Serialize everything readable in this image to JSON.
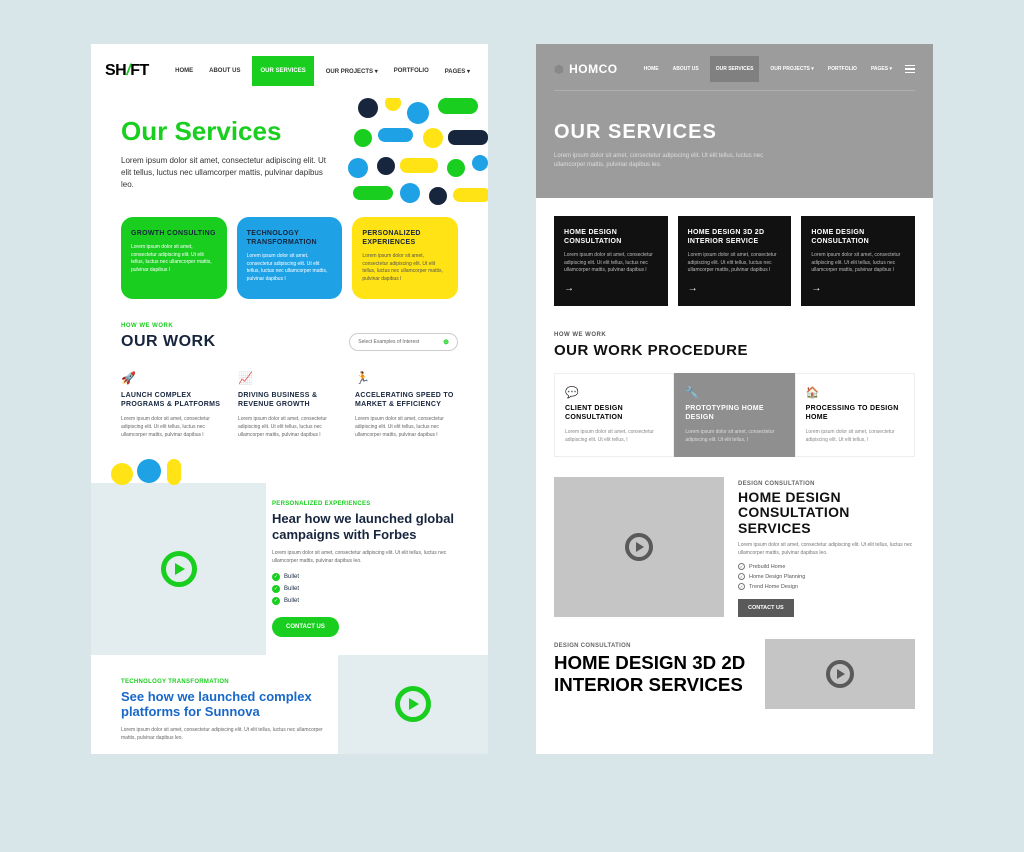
{
  "shift": {
    "logo": {
      "part1": "SH",
      "slash": "/",
      "part2": "FT"
    },
    "nav": [
      "HOME",
      "ABOUT US",
      "OUR SERVICES",
      "OUR PROJECTS ▾",
      "PORTFOLIO",
      "PAGES ▾"
    ],
    "nav_active_index": 2,
    "hero": {
      "title": "Our Services",
      "text": "Lorem ipsum dolor sit amet, consectetur adipiscing elit. Ut elit tellus, luctus nec ullamcorper mattis, pulvinar dapibus leo."
    },
    "cards": [
      {
        "title": "GROWTH CONSULTING",
        "text": "Lorem ipsum dolor sit amet, consectetur adipiscing elit. Ut elit tellus, luctus nec ullamcorper mattis, pulvinar dapibus l",
        "bg": "#19ce1f",
        "title_color": "#17253d",
        "text_color": "#fff"
      },
      {
        "title": "TECHNOLOGY TRANSFORMATION",
        "text": "Lorem ipsum dolor sit amet, consectetur adipiscing elit. Ut elit tellus, luctus nec ullamcorper mattis, pulvinar dapibus l",
        "bg": "#1fa1e6",
        "title_color": "#17253d",
        "text_color": "#fff"
      },
      {
        "title": "PERSONALIZED EXPERIENCES",
        "text": "Lorem ipsum dolor sit amet, consectetur adipiscing elit. Ut elit tellus, luctus nec ullamcorper mattis, pulvinar dapibus l",
        "bg": "#ffe314",
        "title_color": "#17253d",
        "text_color": "#555"
      }
    ],
    "work_eyebrow": "HOW WE WORK",
    "work_title": "OUR WORK",
    "select_label": "Select Examples of Interest",
    "work_cols": [
      {
        "icon": "🚀",
        "title": "LAUNCH COMPLEX PROGRAMS & PLATFORMS",
        "text": "Lorem ipsum dolor sit amet, consectetur adipiscing elit. Ut elit tellus, luctus nec ullamcorper mattis, pulvinar dapibus l"
      },
      {
        "icon": "📈",
        "title": "DRIVING BUSINESS & REVENUE GROWTH",
        "text": "Lorem ipsum dolor sit amet, consectetur adipiscing elit. Ut elit tellus, luctus nec ullamcorper mattis, pulvinar dapibus l"
      },
      {
        "icon": "🏃",
        "title": "ACCELERATING SPEED TO MARKET & EFFICIENCY",
        "text": "Lorem ipsum dolor sit amet, consectetur adipiscing elit. Ut elit tellus, luctus nec ullamcorper mattis, pulvinar dapibus l"
      }
    ],
    "feature1": {
      "eyebrow": "PERSONALIZED EXPERIENCES",
      "title": "Hear how we launched global campaigns with Forbes",
      "text": "Lorem ipsum dolor sit amet, consectetur adipiscing elit. Ut elit tellus, luctus nec ullamcorper mattis, pulvinar dapibus leo.",
      "bullets": [
        "Bullet",
        "Bullet",
        "Bullet"
      ],
      "cta": "CONTACT US"
    },
    "feature2": {
      "eyebrow": "TECHNOLOGY TRANSFORMATION",
      "title": "See how we launched complex platforms for Sunnova",
      "text": "Lorem ipsum dolor sit amet, consectetur adipiscing elit. Ut elit tellus, luctus nec ullamcorper mattis, pulvinar dapibus leo."
    },
    "colors": {
      "accent": "#19ce1f",
      "blue": "#1fa1e6",
      "yellow": "#ffe314",
      "navy": "#17253d"
    }
  },
  "homco": {
    "logo": "HOMCO",
    "nav": [
      "HOME",
      "ABOUT US",
      "OUR SERVICES",
      "OUR PROJECTS ▾",
      "PORTFOLIO",
      "PAGES ▾"
    ],
    "nav_active_index": 2,
    "hero": {
      "title": "OUR SERVICES",
      "text": "Lorem ipsum dolor sit amet, consectetur adipiscing elit. Ut elit tellus, luctus nec ullamcorper mattis, pulvinar dapibus leo."
    },
    "cards": [
      {
        "title": "HOME DESIGN CONSULTATION",
        "text": "Lorem ipsum dolor sit amet, consectetur adipiscing elit. Ut elit tellus, luctus nec ullamcorper mattis, pulvinar dapibus l"
      },
      {
        "title": "HOME DESIGN 3D 2D INTERIOR SERVICE",
        "text": "Lorem ipsum dolor sit amet, consectetur adipiscing elit. Ut elit tellus, luctus nec ullamcorper mattis, pulvinar dapibus l"
      },
      {
        "title": "HOME DESIGN CONSULTATION",
        "text": "Lorem ipsum dolor sit amet, consectetur adipiscing elit. Ut elit tellus, luctus nec ullamcorper mattis, pulvinar dapibus l"
      }
    ],
    "work_eyebrow": "HOW WE WORK",
    "work_title": "OUR WORK PROCEDURE",
    "work_cols": [
      {
        "icon": "💬",
        "title": "CLIENT DESIGN CONSULTATION",
        "text": "Lorem ipsum dolor sit amet, consectetur adipiscing elit. Ut elit tellus, l",
        "active": false
      },
      {
        "icon": "🔧",
        "title": "PROTOTYPING HOME DESIGN",
        "text": "Lorem ipsum dolor sit amet, consectetur adipiscing elit. Ut elit tellus, l",
        "active": true
      },
      {
        "icon": "🏠",
        "title": "PROCESSING TO DESIGN HOME",
        "text": "Lorem ipsum dolor sit amet, consectetur adipiscing elit. Ut elit tellus, l",
        "active": false
      }
    ],
    "feature1": {
      "eyebrow": "DESIGN CONSULTATION",
      "title": "HOME DESIGN CONSULTATION SERVICES",
      "text": "Lorem ipsum dolor sit amet, consectetur adipiscing elit. Ut elit tellus, luctus nec ullamcorper mattis, pulvinar dapibus leo.",
      "bullets": [
        "Prebuild Home",
        "Home Design Planning",
        "Trend Home Design"
      ],
      "cta": "CONTACT US"
    },
    "feature2": {
      "eyebrow": "DESIGN CONSULTATION",
      "title": "HOME DESIGN 3D 2D INTERIOR SERVICES"
    },
    "colors": {
      "hero_bg": "#9c9c9c",
      "card_bg": "#111",
      "active_col": "#8f8f8f",
      "play": "#5a5a5a"
    }
  }
}
